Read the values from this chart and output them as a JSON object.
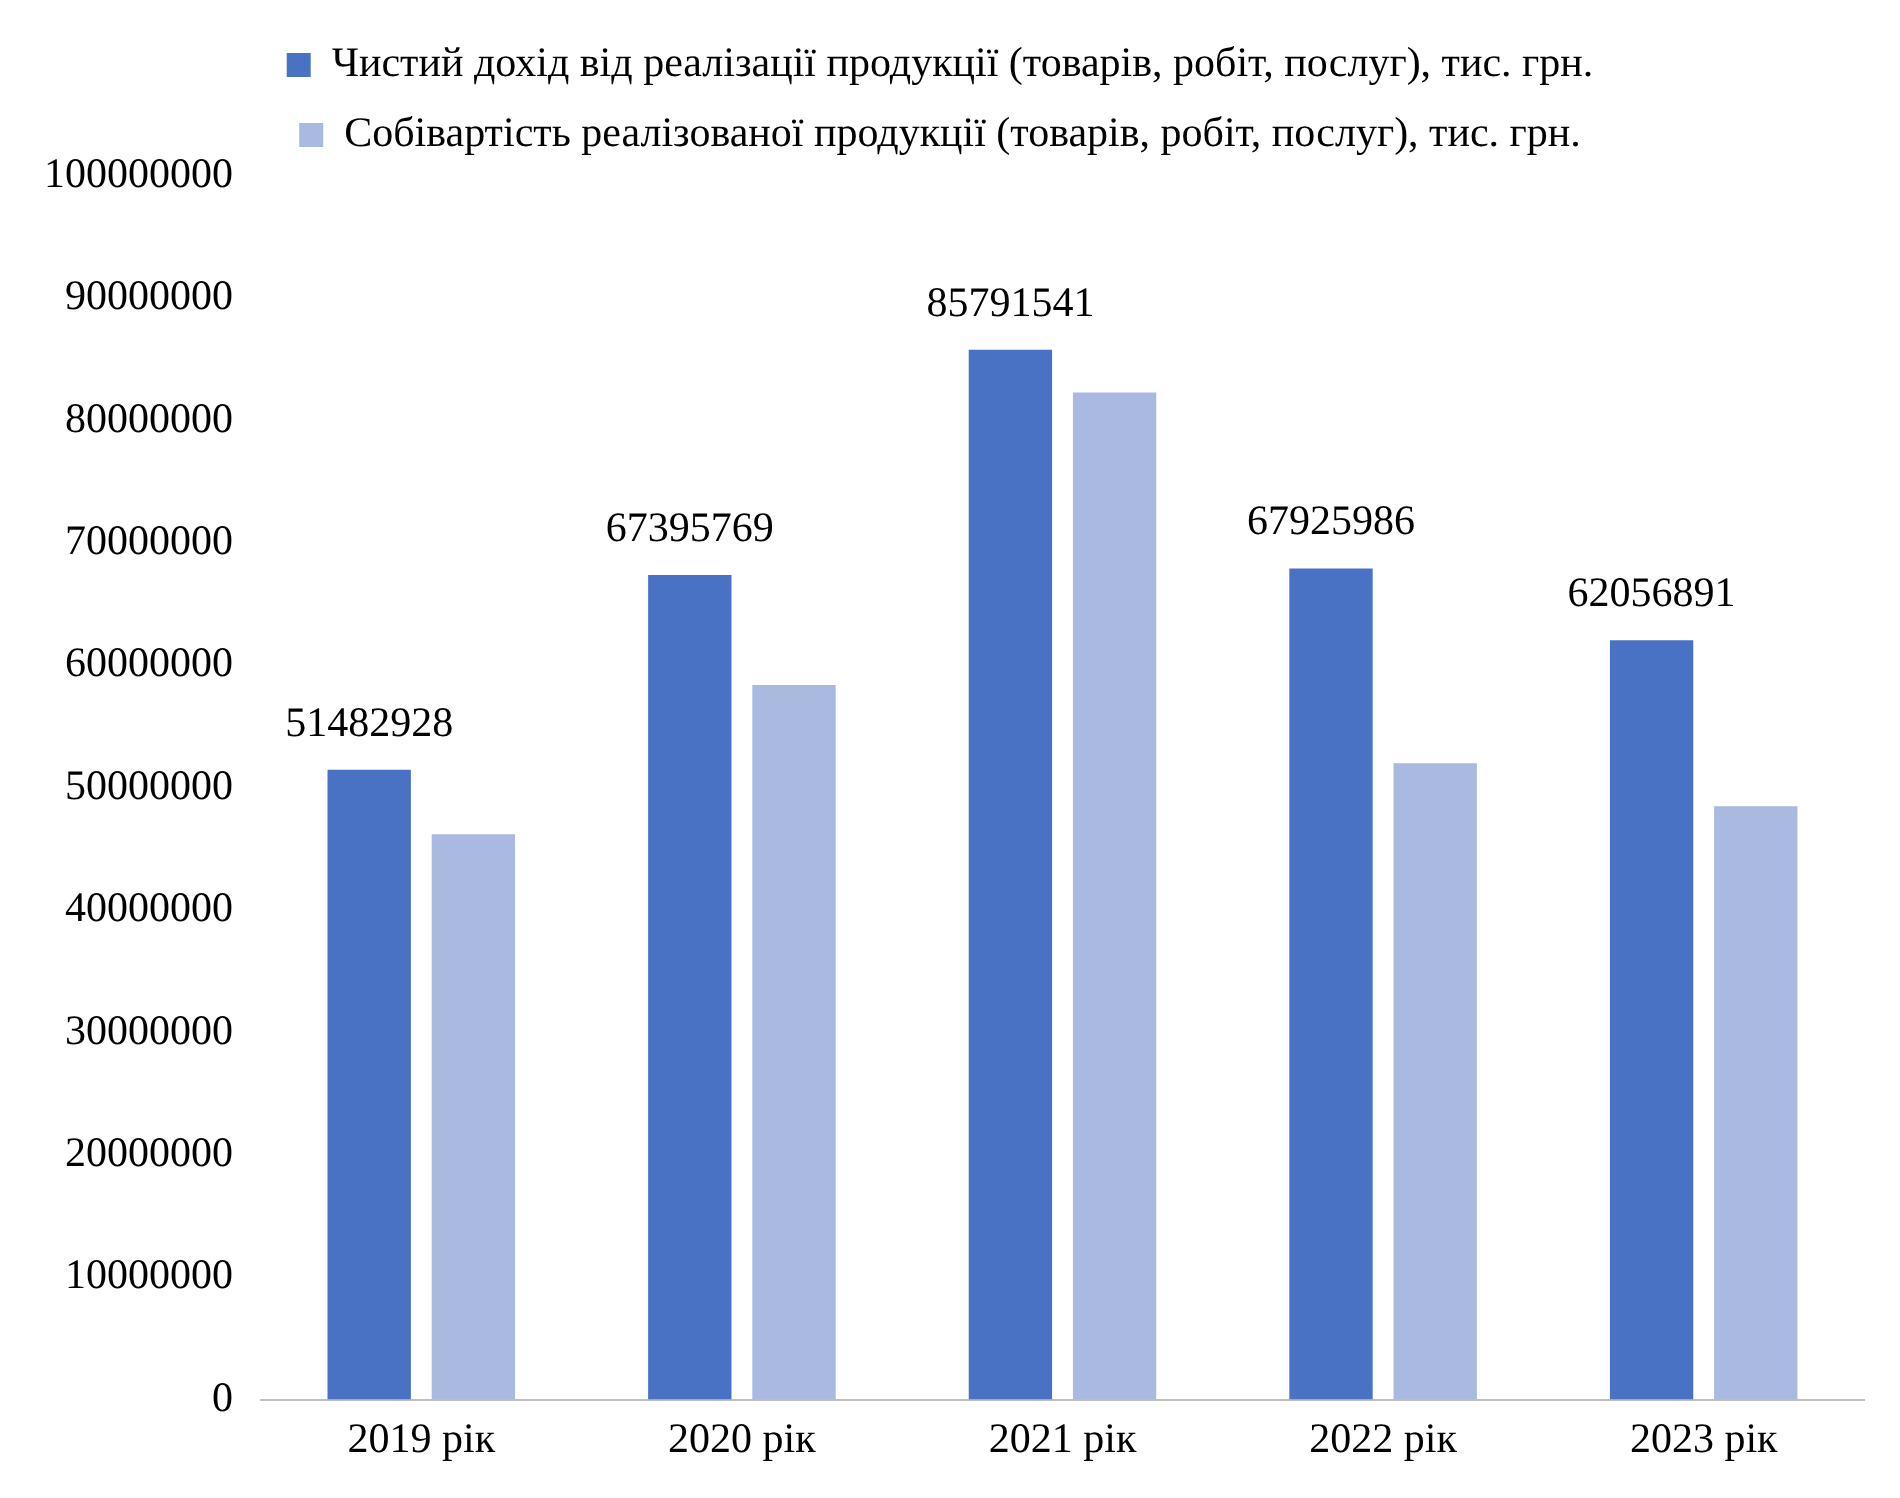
{
  "chart_data": {
    "type": "bar",
    "categories": [
      "2019 рік",
      "2020 рік",
      "2021 рік",
      "2022 рік",
      "2023 рік"
    ],
    "series": [
      {
        "name": "Чистий дохід від реалізації продукції (товарів, робіт, послуг), тис. грн.",
        "color": "#4a72c4",
        "values": [
          51482928,
          67395769,
          85791541,
          67925986,
          62056891
        ],
        "value_labels": [
          "51482928",
          "67395769",
          "85791541",
          "67925986",
          "62056891"
        ]
      },
      {
        "name": "Собівартість реалізованої продукції (товарів, робіт, послуг), тис. грн.",
        "color": "#a9b9e0",
        "values": [
          46200000,
          58400000,
          82300000,
          52000000,
          48500000
        ]
      }
    ],
    "ylim": [
      0,
      100000000
    ],
    "yticks": [
      0,
      10000000,
      20000000,
      30000000,
      40000000,
      50000000,
      60000000,
      70000000,
      80000000,
      90000000,
      100000000
    ],
    "grid": false,
    "legend": "top"
  }
}
